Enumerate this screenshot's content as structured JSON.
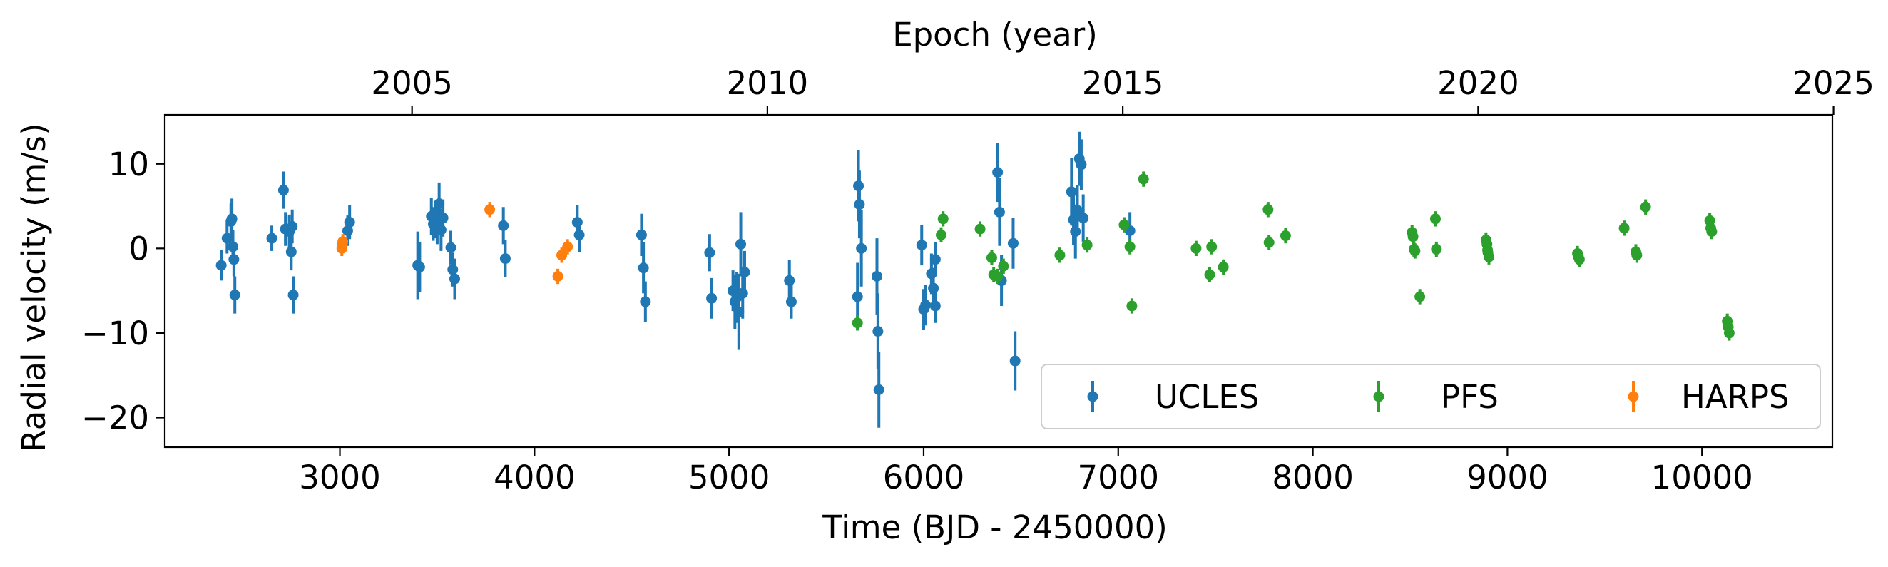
{
  "chart_data": {
    "type": "scatter",
    "xlabel": "Time (BJD - 2450000)",
    "ylabel": "Radial velocity (m/s)",
    "top_xlabel": "Epoch (year)",
    "xlim": [
      2100,
      10670
    ],
    "ylim": [
      -23.5,
      15.8
    ],
    "x_ticks": [
      3000,
      4000,
      5000,
      6000,
      7000,
      8000,
      9000,
      10000
    ],
    "x_tick_labels": [
      "3000",
      "4000",
      "5000",
      "6000",
      "7000",
      "8000",
      "9000",
      "10000"
    ],
    "y_ticks": [
      10,
      0,
      -10,
      -20
    ],
    "y_tick_labels": [
      "10",
      "0",
      "−10",
      "−20"
    ],
    "top_x_ticks": [
      2005,
      2010,
      2015,
      2020,
      2025
    ],
    "top_x_tick_labels": [
      "2005",
      "2010",
      "2015",
      "2020",
      "2025"
    ],
    "top_axis_year_to_time": {
      "year0": 2000.0,
      "time_at_year0": 1544.5,
      "days_per_year": 365.25
    },
    "grid": false,
    "legend": {
      "position": "lower-right",
      "columns": 3
    },
    "series": [
      {
        "name": "UCLES",
        "color": "#1f77b4",
        "points": [
          [
            2390,
            -2.0,
            1.8
          ],
          [
            2420,
            1.2,
            1.8
          ],
          [
            2440,
            3.2,
            2.2
          ],
          [
            2445,
            3.5,
            2.4
          ],
          [
            2450,
            0.2,
            2.0
          ],
          [
            2455,
            -1.3,
            2.0
          ],
          [
            2460,
            -5.5,
            2.2
          ],
          [
            2650,
            1.2,
            1.5
          ],
          [
            2710,
            6.9,
            2.2
          ],
          [
            2720,
            2.3,
            2.0
          ],
          [
            2740,
            2.0,
            2.0
          ],
          [
            2750,
            -0.4,
            2.2
          ],
          [
            2755,
            2.6,
            2.0
          ],
          [
            2760,
            -5.5,
            2.2
          ],
          [
            3040,
            2.1,
            1.8
          ],
          [
            3050,
            3.1,
            2.0
          ],
          [
            3400,
            -2.0,
            4.0
          ],
          [
            3410,
            -2.2,
            3.0
          ],
          [
            3470,
            3.8,
            2.2
          ],
          [
            3480,
            2.9,
            2.0
          ],
          [
            3490,
            3.4,
            2.2
          ],
          [
            3500,
            3.0,
            2.5
          ],
          [
            3510,
            5.3,
            2.5
          ],
          [
            3520,
            2.2,
            2.5
          ],
          [
            3530,
            3.6,
            2.2
          ],
          [
            3570,
            0.1,
            2.0
          ],
          [
            3580,
            -2.5,
            2.0
          ],
          [
            3590,
            -3.6,
            2.4
          ],
          [
            3840,
            2.7,
            2.2
          ],
          [
            3850,
            -1.2,
            2.2
          ],
          [
            4220,
            3.1,
            2.0
          ],
          [
            4230,
            1.6,
            2.0
          ],
          [
            4550,
            1.6,
            2.5
          ],
          [
            4560,
            -2.3,
            3.0
          ],
          [
            4570,
            -6.3,
            2.4
          ],
          [
            4900,
            -0.5,
            2.2
          ],
          [
            4910,
            -5.9,
            2.4
          ],
          [
            5020,
            -5.0,
            2.4
          ],
          [
            5030,
            -6.3,
            3.2
          ],
          [
            5040,
            -5.8,
            3.0
          ],
          [
            5050,
            -7.5,
            4.5
          ],
          [
            5060,
            0.5,
            3.8
          ],
          [
            5070,
            -5.3,
            3.0
          ],
          [
            5080,
            -2.8,
            2.5
          ],
          [
            5310,
            -3.8,
            2.4
          ],
          [
            5320,
            -6.3,
            2.0
          ],
          [
            5660,
            -5.7,
            4.0
          ],
          [
            5665,
            7.4,
            4.2
          ],
          [
            5670,
            5.2,
            4.0
          ],
          [
            5680,
            0.0,
            4.5
          ],
          [
            5760,
            -3.3,
            4.5
          ],
          [
            5765,
            -9.8,
            4.5
          ],
          [
            5770,
            -16.7,
            4.5
          ],
          [
            5990,
            0.4,
            2.4
          ],
          [
            6000,
            -7.2,
            2.4
          ],
          [
            6010,
            -6.7,
            2.4
          ],
          [
            6040,
            -3.0,
            2.4
          ],
          [
            6050,
            -4.7,
            2.4
          ],
          [
            6060,
            -6.8,
            2.0
          ],
          [
            6060,
            -1.3,
            2.0
          ],
          [
            6380,
            9.0,
            3.5
          ],
          [
            6390,
            4.3,
            4.0
          ],
          [
            6400,
            -3.8,
            3.0
          ],
          [
            6460,
            0.6,
            3.0
          ],
          [
            6470,
            -13.3,
            3.5
          ],
          [
            6760,
            6.7,
            4.0
          ],
          [
            6770,
            3.4,
            3.0
          ],
          [
            6780,
            2.0,
            3.2
          ],
          [
            6790,
            4.5,
            3.0
          ],
          [
            6800,
            10.6,
            3.2
          ],
          [
            6810,
            9.9,
            3.0
          ],
          [
            6820,
            3.6,
            2.8
          ],
          [
            7060,
            2.1,
            2.2
          ]
        ]
      },
      {
        "name": "PFS",
        "color": "#2ca02c",
        "points": [
          [
            5660,
            -8.8,
            0.9
          ],
          [
            6090,
            1.6,
            0.9
          ],
          [
            6100,
            3.5,
            0.9
          ],
          [
            6290,
            2.3,
            0.9
          ],
          [
            6350,
            -1.1,
            0.9
          ],
          [
            6360,
            -3.1,
            0.9
          ],
          [
            6380,
            -3.3,
            0.9
          ],
          [
            6410,
            -2.1,
            0.9
          ],
          [
            6700,
            -0.8,
            0.9
          ],
          [
            6840,
            0.4,
            0.9
          ],
          [
            7030,
            2.8,
            0.9
          ],
          [
            7060,
            0.2,
            0.9
          ],
          [
            7070,
            -6.8,
            0.9
          ],
          [
            7130,
            8.2,
            0.9
          ],
          [
            7400,
            0.0,
            0.9
          ],
          [
            7470,
            -3.1,
            0.9
          ],
          [
            7480,
            0.2,
            0.9
          ],
          [
            7540,
            -2.2,
            0.9
          ],
          [
            7770,
            4.6,
            0.9
          ],
          [
            7775,
            0.7,
            0.9
          ],
          [
            7860,
            1.5,
            0.9
          ],
          [
            8510,
            1.9,
            0.9
          ],
          [
            8515,
            1.4,
            0.9
          ],
          [
            8520,
            -0.1,
            0.9
          ],
          [
            8525,
            -0.3,
            0.9
          ],
          [
            8550,
            -5.7,
            0.9
          ],
          [
            8630,
            3.5,
            0.9
          ],
          [
            8635,
            -0.1,
            0.9
          ],
          [
            8890,
            1.0,
            0.9
          ],
          [
            8895,
            0.5,
            0.9
          ],
          [
            8898,
            -0.2,
            0.9
          ],
          [
            8900,
            -0.5,
            0.9
          ],
          [
            8905,
            -1.0,
            0.9
          ],
          [
            9360,
            -0.6,
            0.9
          ],
          [
            9365,
            -1.0,
            0.9
          ],
          [
            9370,
            -1.3,
            0.9
          ],
          [
            9600,
            2.4,
            0.9
          ],
          [
            9660,
            -0.4,
            0.9
          ],
          [
            9665,
            -0.8,
            0.9
          ],
          [
            9710,
            4.9,
            0.9
          ],
          [
            10040,
            3.3,
            0.9
          ],
          [
            10045,
            2.4,
            0.9
          ],
          [
            10050,
            2.0,
            0.9
          ],
          [
            10130,
            -8.6,
            0.9
          ],
          [
            10135,
            -9.3,
            0.9
          ],
          [
            10140,
            -10.0,
            0.9
          ]
        ]
      },
      {
        "name": "HARPS",
        "color": "#ff7f0e",
        "points": [
          [
            3010,
            0.0,
            0.9
          ],
          [
            3012,
            0.4,
            0.9
          ],
          [
            3015,
            0.8,
            0.9
          ],
          [
            3770,
            4.6,
            0.9
          ],
          [
            4120,
            -3.3,
            0.9
          ],
          [
            4140,
            -0.8,
            0.9
          ],
          [
            4170,
            0.2,
            0.9
          ]
        ]
      }
    ]
  }
}
